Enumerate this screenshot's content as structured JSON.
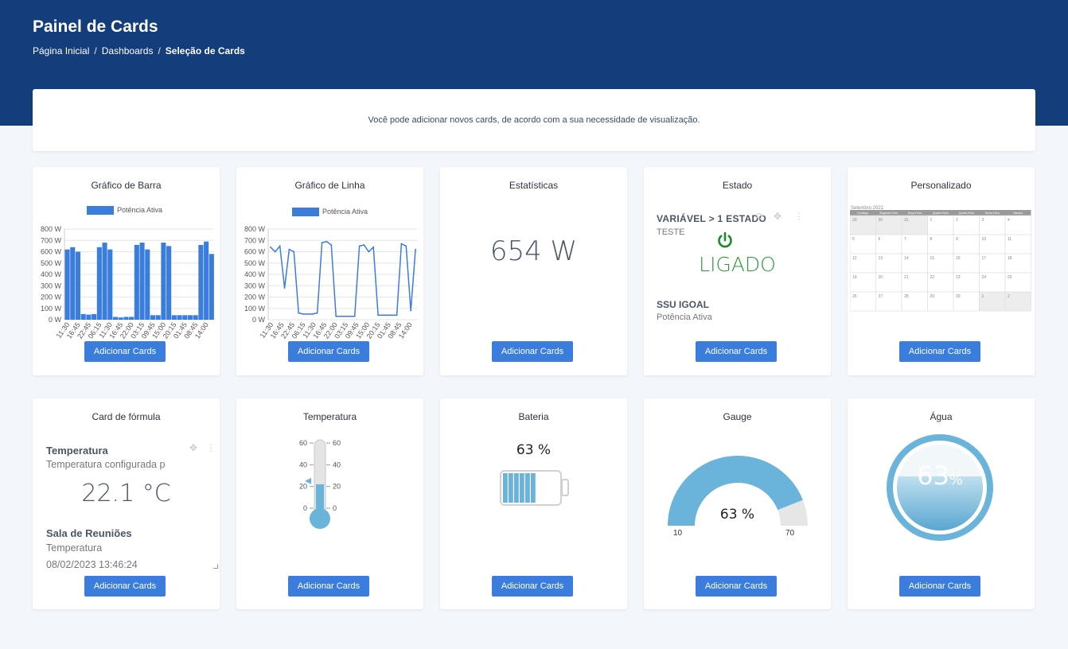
{
  "header": {
    "title": "Painel de Cards",
    "breadcrumb": [
      "Página Inicial",
      "Dashboards",
      "Seleção de Cards"
    ]
  },
  "info": "Você pode adicionar novos cards, de acordo com a sua necessidade de visualização.",
  "add_label": "Adicionar Cards",
  "cards": {
    "bar": {
      "title": "Gráfico de Barra",
      "legend": "Potência Ativa"
    },
    "line": {
      "title": "Gráfico de Linha",
      "legend": "Potência Ativa"
    },
    "stats": {
      "title": "Estatísticas",
      "value": "654 W"
    },
    "estado": {
      "title": "Estado",
      "variable": "VARIÁVEL > 1 ESTADO",
      "sub": "TESTE",
      "state": "LIGADO",
      "device": "SSU IGOAL",
      "measure": "Potência Ativa"
    },
    "custom": {
      "title": "Personalizado",
      "month": "Setembro 2021",
      "weekdays": [
        "Domingo",
        "Segunda-Feira",
        "Terça-Feira",
        "Quarta-Feira",
        "Quinta-Feira",
        "Sexta-Feira",
        "Sábado"
      ],
      "rows": [
        [
          "29",
          "30",
          "31",
          "1",
          "2",
          "3",
          "4"
        ],
        [
          "5",
          "6",
          "7",
          "8",
          "9",
          "10",
          "11"
        ],
        [
          "12",
          "13",
          "14",
          "15",
          "16",
          "17",
          "18"
        ],
        [
          "19",
          "20",
          "21",
          "22",
          "23",
          "24",
          "25"
        ],
        [
          "26",
          "27",
          "28",
          "29",
          "30",
          "1",
          "2"
        ]
      ]
    },
    "formula": {
      "title": "Card de fórmula",
      "heading": "Temperatura",
      "sub": "Temperatura configurada p",
      "value": "22.1 °C",
      "room": "Sala de Reuniões",
      "room_sub": "Temperatura",
      "timestamp": "08/02/2023 13:46:24"
    },
    "temp": {
      "title": "Temperatura",
      "ticks": [
        "60",
        "40",
        "20",
        "0"
      ],
      "level": 22,
      "max": 60
    },
    "battery": {
      "title": "Bateria",
      "value": "63 %",
      "level": 0.63
    },
    "gauge": {
      "title": "Gauge",
      "value": "63 %",
      "min": "10",
      "max": "70",
      "level": 0.88
    },
    "water": {
      "title": "Água",
      "value": "63",
      "unit": "%",
      "level": 0.63
    }
  },
  "chart_data": [
    {
      "type": "bar",
      "title": "",
      "series": [
        {
          "name": "Potência Ativa",
          "values": [
            620,
            640,
            600,
            50,
            45,
            50,
            640,
            680,
            620,
            25,
            20,
            25,
            25,
            660,
            680,
            620,
            40,
            40,
            680,
            650,
            40,
            40,
            40,
            40,
            40,
            660,
            690,
            580
          ]
        }
      ],
      "x_ticks": [
        "11:30",
        "16:45",
        "22:45",
        "06:15",
        "11:30",
        "16:45",
        "22:00",
        "03:15",
        "09:45",
        "15:00",
        "20:15",
        "01:45",
        "08:45",
        "14:00"
      ],
      "y_ticks": [
        "800 W",
        "700 W",
        "600 W",
        "500 W",
        "400 W",
        "300 W",
        "200 W",
        "100 W",
        "0 W"
      ],
      "ylim": [
        0,
        800
      ]
    },
    {
      "type": "line",
      "title": "",
      "series": [
        {
          "name": "Potência Ativa",
          "values": [
            640,
            600,
            650,
            280,
            620,
            600,
            60,
            50,
            50,
            50,
            60,
            680,
            690,
            660,
            30,
            30,
            30,
            30,
            30,
            650,
            660,
            600,
            640,
            40,
            40,
            40,
            40,
            40,
            670,
            650,
            80,
            620
          ]
        }
      ],
      "x_ticks": [
        "11:30",
        "16:45",
        "22:45",
        "06:15",
        "11:30",
        "16:45",
        "22:00",
        "03:15",
        "09:45",
        "15:00",
        "20:15",
        "01:45",
        "08:45",
        "14:00"
      ],
      "y_ticks": [
        "800 W",
        "700 W",
        "600 W",
        "500 W",
        "400 W",
        "300 W",
        "200 W",
        "100 W",
        "0 W"
      ],
      "ylim": [
        0,
        800
      ]
    }
  ]
}
